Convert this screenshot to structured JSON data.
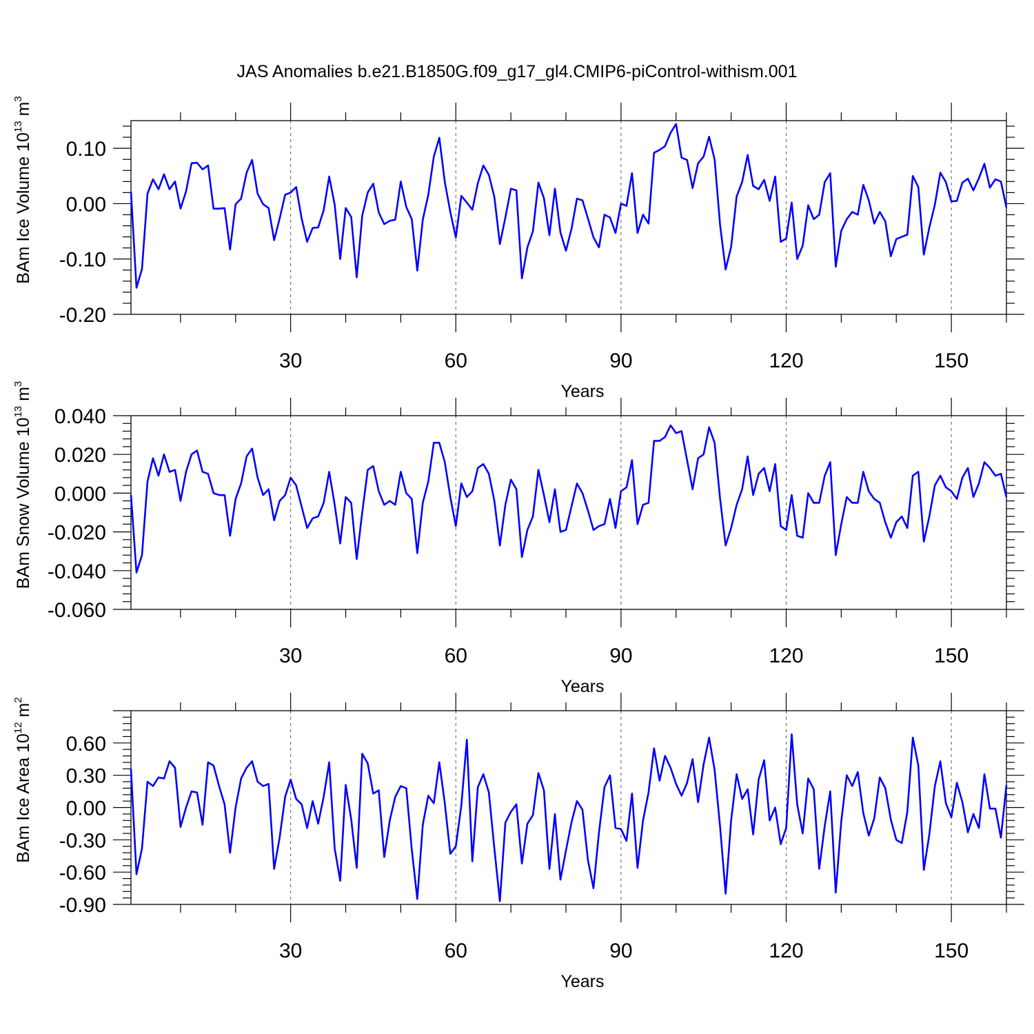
{
  "figure_title": "JAS Anomalies b.e21.B1850G.f09_g17_gl4.CMIP6-piControl-withism.001",
  "colors": {
    "line": "#0000ff",
    "axes": "#000000",
    "grid": "#555555",
    "background": "#ffffff"
  },
  "chart_data": [
    {
      "type": "line",
      "ylabel": "BAm Ice Volume 10",
      "ylabel_exp": "13",
      "ylabel_unit": " m",
      "ylabel_unit_exp": "3",
      "xlabel": "Years",
      "xlim": [
        1,
        160
      ],
      "ylim": [
        -0.2,
        0.15
      ],
      "xticks": [
        30,
        60,
        90,
        120,
        150
      ],
      "xtick_labels": [
        "30",
        "60",
        "90",
        "120",
        "150"
      ],
      "yticks": [
        -0.2,
        -0.1,
        0.0,
        0.1
      ],
      "ytick_labels": [
        "-0.20",
        "-0.10",
        "0.00",
        "0.10"
      ],
      "grid_x": [
        30,
        60,
        90,
        120,
        150
      ],
      "series": [
        {
          "name": "BAm Ice Volume",
          "values": [
            0.022,
            -0.152,
            -0.118,
            0.018,
            0.044,
            0.026,
            0.053,
            0.026,
            0.04,
            -0.009,
            0.022,
            0.073,
            0.074,
            0.062,
            0.069,
            -0.009,
            -0.009,
            -0.008,
            -0.083,
            -0.001,
            0.009,
            0.056,
            0.079,
            0.018,
            -0.001,
            -0.008,
            -0.066,
            -0.027,
            0.016,
            0.02,
            0.03,
            -0.027,
            -0.069,
            -0.044,
            -0.043,
            -0.012,
            0.049,
            -0.002,
            -0.1,
            -0.008,
            -0.024,
            -0.133,
            -0.022,
            0.02,
            0.036,
            -0.016,
            -0.037,
            -0.031,
            -0.029,
            0.04,
            -0.006,
            -0.028,
            -0.121,
            -0.029,
            0.016,
            0.085,
            0.119,
            0.039,
            -0.015,
            -0.061,
            0.014,
            0.002,
            -0.011,
            0.037,
            0.069,
            0.052,
            0.012,
            -0.073,
            -0.025,
            0.027,
            0.024,
            -0.135,
            -0.079,
            -0.05,
            0.038,
            0.01,
            -0.057,
            0.027,
            -0.052,
            -0.085,
            -0.046,
            0.009,
            0.006,
            -0.027,
            -0.061,
            -0.079,
            -0.02,
            -0.025,
            -0.053,
            0.0,
            -0.004,
            0.055,
            -0.053,
            -0.02,
            -0.036,
            0.092,
            0.097,
            0.104,
            0.128,
            0.144,
            0.083,
            0.079,
            0.028,
            0.073,
            0.085,
            0.121,
            0.08,
            -0.039,
            -0.119,
            -0.078,
            0.013,
            0.039,
            0.088,
            0.032,
            0.026,
            0.043,
            0.005,
            0.049,
            -0.069,
            -0.063,
            0.002,
            -0.1,
            -0.076,
            -0.003,
            -0.028,
            -0.02,
            0.039,
            0.055,
            -0.114,
            -0.049,
            -0.028,
            -0.015,
            -0.02,
            0.034,
            0.006,
            -0.036,
            -0.015,
            -0.032,
            -0.095,
            -0.064,
            -0.06,
            -0.056,
            0.05,
            0.03,
            -0.092,
            -0.043,
            -0.002,
            0.056,
            0.039,
            0.004,
            0.005,
            0.038,
            0.045,
            0.024,
            0.046,
            0.072,
            0.029,
            0.044,
            0.04,
            -0.007
          ]
        }
      ]
    },
    {
      "type": "line",
      "ylabel": "BAm Snow Volume 10",
      "ylabel_exp": "13",
      "ylabel_unit": " m",
      "ylabel_unit_exp": "3",
      "xlabel": "Years",
      "xlim": [
        1,
        160
      ],
      "ylim": [
        -0.06,
        0.04
      ],
      "xticks": [
        30,
        60,
        90,
        120,
        150
      ],
      "xtick_labels": [
        "30",
        "60",
        "90",
        "120",
        "150"
      ],
      "yticks": [
        -0.06,
        -0.04,
        -0.02,
        0.0,
        0.02,
        0.04
      ],
      "ytick_labels": [
        "-0.060",
        "-0.040",
        "-0.020",
        "0.000",
        "0.020",
        "0.040"
      ],
      "grid_x": [
        30,
        60,
        90,
        120,
        150
      ],
      "series": [
        {
          "name": "BAm Snow Volume",
          "values": [
            -0.001,
            -0.041,
            -0.032,
            0.006,
            0.018,
            0.009,
            0.02,
            0.011,
            0.012,
            -0.004,
            0.011,
            0.02,
            0.022,
            0.011,
            0.01,
            0.0,
            -0.001,
            -0.001,
            -0.022,
            -0.003,
            0.005,
            0.019,
            0.023,
            0.008,
            -0.001,
            0.002,
            -0.014,
            -0.004,
            -0.001,
            0.008,
            0.004,
            -0.007,
            -0.018,
            -0.013,
            -0.012,
            -0.005,
            0.011,
            -0.006,
            -0.026,
            -0.002,
            -0.005,
            -0.034,
            -0.01,
            0.012,
            0.014,
            0.001,
            -0.006,
            -0.004,
            -0.006,
            0.011,
            0.0,
            -0.003,
            -0.031,
            -0.005,
            0.006,
            0.026,
            0.026,
            0.016,
            -0.002,
            -0.017,
            0.005,
            -0.002,
            0.001,
            0.013,
            0.015,
            0.01,
            -0.004,
            -0.027,
            -0.006,
            0.007,
            0.002,
            -0.033,
            -0.019,
            -0.012,
            0.012,
            -0.001,
            -0.015,
            0.002,
            -0.02,
            -0.019,
            -0.007,
            0.005,
            0.0,
            -0.009,
            -0.019,
            -0.017,
            -0.016,
            -0.003,
            -0.018,
            0.001,
            0.003,
            0.017,
            -0.016,
            -0.006,
            -0.005,
            0.027,
            0.027,
            0.029,
            0.035,
            0.031,
            0.032,
            0.017,
            0.002,
            0.018,
            0.02,
            0.034,
            0.026,
            -0.003,
            -0.027,
            -0.018,
            -0.006,
            0.002,
            0.019,
            -0.001,
            0.01,
            0.013,
            0.001,
            0.015,
            -0.017,
            -0.019,
            -0.001,
            -0.022,
            -0.023,
            0.0,
            -0.005,
            -0.005,
            0.009,
            0.016,
            -0.032,
            -0.016,
            -0.002,
            -0.005,
            -0.005,
            0.011,
            0.001,
            -0.003,
            -0.005,
            -0.015,
            -0.023,
            -0.015,
            -0.012,
            -0.018,
            0.009,
            0.011,
            -0.025,
            -0.012,
            0.004,
            0.009,
            0.003,
            0.001,
            -0.003,
            0.008,
            0.013,
            -0.002,
            0.005,
            0.016,
            0.013,
            0.009,
            0.01,
            -0.002
          ]
        }
      ]
    },
    {
      "type": "line",
      "ylabel": "BAm Ice Area 10",
      "ylabel_exp": "12",
      "ylabel_unit": " m",
      "ylabel_unit_exp": "2",
      "xlabel": "Years",
      "xlim": [
        1,
        160
      ],
      "ylim": [
        -0.9,
        0.9
      ],
      "xticks": [
        30,
        60,
        90,
        120,
        150
      ],
      "xtick_labels": [
        "30",
        "60",
        "90",
        "120",
        "150"
      ],
      "yticks": [
        -0.9,
        -0.6,
        -0.3,
        0.0,
        0.3,
        0.6
      ],
      "ytick_labels": [
        "-0.90",
        "-0.60",
        "-0.30",
        "0.00",
        "0.30",
        "0.60"
      ],
      "grid_x": [
        30,
        60,
        90,
        120,
        150
      ],
      "series": [
        {
          "name": "BAm Ice Area",
          "values": [
            0.36,
            -0.62,
            -0.38,
            0.24,
            0.2,
            0.28,
            0.27,
            0.43,
            0.37,
            -0.18,
            0.0,
            0.15,
            0.14,
            -0.16,
            0.42,
            0.39,
            0.2,
            0.03,
            -0.42,
            0.0,
            0.27,
            0.37,
            0.43,
            0.24,
            0.2,
            0.22,
            -0.57,
            -0.28,
            0.1,
            0.26,
            0.08,
            0.03,
            -0.19,
            0.06,
            -0.15,
            0.1,
            0.42,
            -0.38,
            -0.68,
            0.21,
            -0.11,
            -0.56,
            0.5,
            0.41,
            0.13,
            0.16,
            -0.46,
            -0.12,
            0.1,
            0.2,
            0.18,
            -0.39,
            -0.85,
            -0.16,
            0.11,
            0.04,
            0.42,
            0.04,
            -0.43,
            -0.36,
            0.02,
            0.63,
            -0.5,
            0.19,
            0.31,
            0.14,
            -0.38,
            -0.87,
            -0.14,
            -0.04,
            0.03,
            -0.52,
            -0.15,
            -0.07,
            0.32,
            0.16,
            -0.57,
            -0.06,
            -0.67,
            -0.4,
            -0.14,
            0.06,
            -0.02,
            -0.49,
            -0.75,
            -0.23,
            0.19,
            0.3,
            -0.19,
            -0.2,
            -0.31,
            0.13,
            -0.56,
            -0.12,
            0.14,
            0.55,
            0.25,
            0.48,
            0.37,
            0.22,
            0.11,
            0.23,
            0.45,
            0.05,
            0.4,
            0.65,
            0.35,
            -0.18,
            -0.8,
            -0.12,
            0.31,
            0.08,
            0.17,
            -0.25,
            0.26,
            0.44,
            -0.12,
            0.0,
            -0.34,
            -0.19,
            0.68,
            0.03,
            -0.24,
            0.27,
            0.17,
            -0.57,
            -0.17,
            0.15,
            -0.79,
            -0.13,
            0.3,
            0.2,
            0.33,
            -0.05,
            -0.26,
            -0.1,
            0.28,
            0.18,
            -0.11,
            -0.3,
            -0.33,
            -0.04,
            0.65,
            0.39,
            -0.58,
            -0.25,
            0.2,
            0.43,
            0.04,
            -0.09,
            0.23,
            0.05,
            -0.23,
            -0.06,
            -0.19,
            0.31,
            -0.01,
            -0.01,
            -0.28,
            0.21
          ]
        }
      ]
    }
  ]
}
